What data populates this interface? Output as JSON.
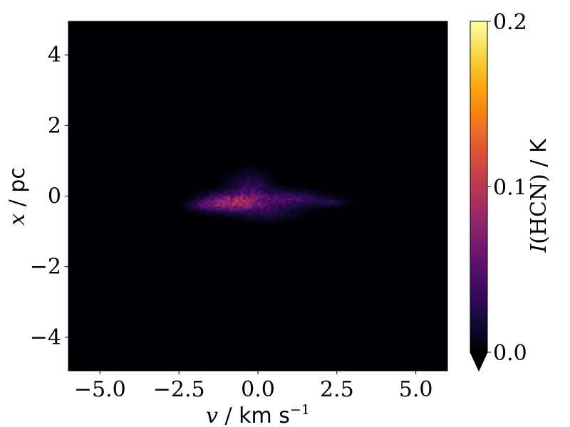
{
  "chart_data": {
    "type": "heatmap",
    "title": "",
    "xlabel": {
      "var": "v",
      "sep": " / ",
      "unit": "km s",
      "unit_exp": "−1"
    },
    "ylabel": {
      "var": "x",
      "sep": " / ",
      "unit": "pc"
    },
    "xlim": [
      -6,
      6
    ],
    "ylim": [
      -4.95,
      4.95
    ],
    "x_ticks": [
      -5.0,
      -2.5,
      0.0,
      2.5,
      5.0
    ],
    "x_tick_labels": [
      "−5.0",
      "−2.5",
      "0.0",
      "2.5",
      "5.0"
    ],
    "y_ticks": [
      -4,
      -2,
      0,
      2,
      4
    ],
    "y_tick_labels": [
      "−4",
      "−2",
      "0",
      "2",
      "4"
    ],
    "grid": false,
    "colormap": "inferno",
    "colorbar": {
      "label_pre": "I",
      "label_mid": "(HCN)",
      "label_post": " / K",
      "range": [
        0.0,
        0.2
      ],
      "ticks": [
        0.0,
        0.1,
        0.2
      ],
      "tick_labels": [
        "0.0",
        "0.1",
        "0.2"
      ],
      "extend": "min"
    },
    "background_color": "#000004",
    "emission_blobs": [
      {
        "x": -0.3,
        "y": -0.2,
        "sx": 0.9,
        "sy": 0.22,
        "peak": 0.045
      },
      {
        "x": -1.1,
        "y": -0.2,
        "sx": 0.45,
        "sy": 0.15,
        "peak": 0.045
      },
      {
        "x": -1.7,
        "y": -0.28,
        "sx": 0.35,
        "sy": 0.1,
        "peak": 0.03
      },
      {
        "x": -0.3,
        "y": 0.25,
        "sx": 0.45,
        "sy": 0.28,
        "peak": 0.028
      },
      {
        "x": 1.2,
        "y": -0.1,
        "sx": 0.6,
        "sy": 0.15,
        "peak": 0.03
      },
      {
        "x": 2.3,
        "y": -0.2,
        "sx": 0.35,
        "sy": 0.08,
        "peak": 0.022
      },
      {
        "x": -0.4,
        "y": -0.2,
        "sx": 0.3,
        "sy": 0.12,
        "peak": 0.02
      },
      {
        "x": 0.3,
        "y": -0.55,
        "sx": 0.6,
        "sy": 0.15,
        "peak": 0.012
      }
    ]
  }
}
